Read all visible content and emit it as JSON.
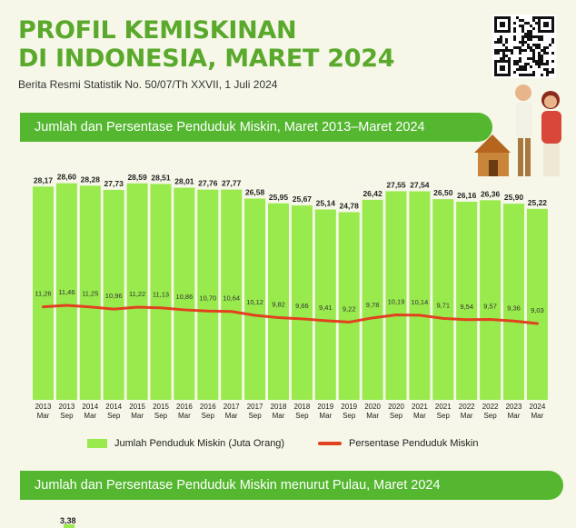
{
  "header": {
    "title_line1": "PROFIL KEMISKINAN",
    "title_line2": "DI INDONESIA, MARET 2024",
    "subtitle": "Berita Resmi Statistik No. 50/07/Th XXVII, 1 Juli 2024"
  },
  "section1": {
    "title": "Jumlah dan Persentase Penduduk Miskin, Maret 2013–Maret 2024"
  },
  "section2": {
    "title": "Jumlah dan Persentase Penduduk Miskin menurut Pulau, Maret 2024",
    "first_value": "3,38"
  },
  "legend": {
    "bars": "Jumlah Penduduk Miskin (Juta Orang)",
    "line": "Persentase Penduduk Miskin"
  },
  "colors": {
    "bar": "#99ea4d",
    "line": "#e2411f",
    "accent": "#54b72f",
    "title": "#5aa92c"
  },
  "chart_data": {
    "type": "bar",
    "categories": [
      [
        "2013",
        "Mar"
      ],
      [
        "2013",
        "Sep"
      ],
      [
        "2014",
        "Mar"
      ],
      [
        "2014",
        "Sep"
      ],
      [
        "2015",
        "Mar"
      ],
      [
        "2015",
        "Sep"
      ],
      [
        "2016",
        "Mar"
      ],
      [
        "2016",
        "Sep"
      ],
      [
        "2017",
        "Mar"
      ],
      [
        "2017",
        "Sep"
      ],
      [
        "2018",
        "Mar"
      ],
      [
        "2018",
        "Sep"
      ],
      [
        "2019",
        "Mar"
      ],
      [
        "2019",
        "Sep"
      ],
      [
        "2020",
        "Mar"
      ],
      [
        "2020",
        "Sep"
      ],
      [
        "2021",
        "Mar"
      ],
      [
        "2021",
        "Sep"
      ],
      [
        "2022",
        "Mar"
      ],
      [
        "2022",
        "Sep"
      ],
      [
        "2023",
        "Mar"
      ],
      [
        "2024",
        "Mar"
      ]
    ],
    "series": [
      {
        "name": "Jumlah Penduduk Miskin (Juta Orang)",
        "type": "bar",
        "values": [
          28.17,
          28.6,
          28.28,
          27.73,
          28.59,
          28.51,
          28.01,
          27.76,
          27.77,
          26.58,
          25.95,
          25.67,
          25.14,
          24.78,
          26.42,
          27.55,
          27.54,
          26.5,
          26.16,
          26.36,
          25.9,
          25.22
        ],
        "labels": [
          "28,17",
          "28,60",
          "28,28",
          "27,73",
          "28,59",
          "28,51",
          "28,01",
          "27,76",
          "27,77",
          "26,58",
          "25,95",
          "25,67",
          "25,14",
          "24,78",
          "26,42",
          "27,55",
          "27,54",
          "26,50",
          "26,16",
          "26,36",
          "25,90",
          "25,22"
        ]
      },
      {
        "name": "Persentase Penduduk Miskin",
        "type": "line",
        "values": [
          11.26,
          11.46,
          11.25,
          10.96,
          11.22,
          11.13,
          10.86,
          10.7,
          10.64,
          10.12,
          9.82,
          9.66,
          9.41,
          9.22,
          9.78,
          10.19,
          10.14,
          9.71,
          9.54,
          9.57,
          9.36,
          9.03
        ],
        "labels": [
          "11,26",
          "11,46",
          "11,25",
          "10,96",
          "11,22",
          "11,13",
          "10,86",
          "10,70",
          "10,64",
          "10,12",
          "9,82",
          "9,66",
          "9,41",
          "9,22",
          "9,78",
          "10,19",
          "10,14",
          "9,71",
          "9,54",
          "9,57",
          "9,36",
          "9,03"
        ]
      }
    ]
  }
}
